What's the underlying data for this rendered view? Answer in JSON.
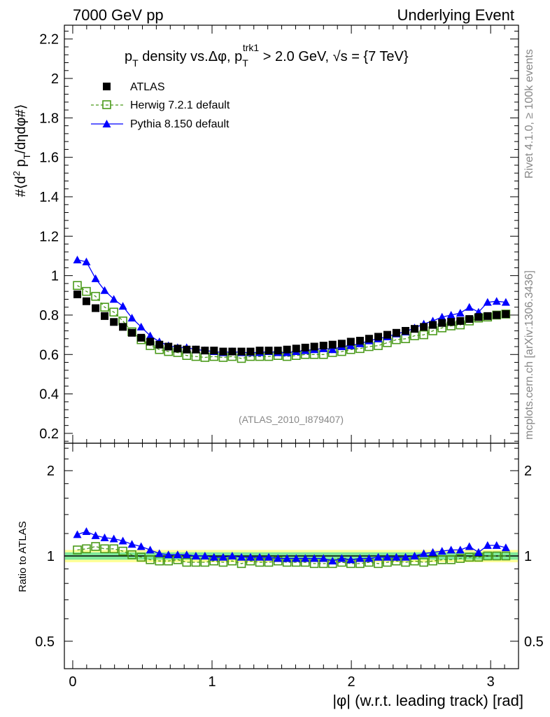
{
  "header": {
    "left": "7000 GeV pp",
    "right": "Underlying Event"
  },
  "side_labels": {
    "rivet": "Rivet 4.1.0, ≥ 100k events",
    "mcplots": "mcplots.cern.ch [arXiv:1306.3436]"
  },
  "analysis_id": "(ATLAS_2010_I879407)",
  "chart_data": [
    {
      "type": "scatter",
      "panel": "main",
      "title": "p_T density vs.Δφ, p_T^trk1 > 2.0 GeV, √s = {7 TeV}",
      "title_parts": {
        "p": "p",
        "t_sub": "T",
        "mid": " density vs.Δφ, p",
        "trk1": "trk1",
        "t_sub2": "T",
        "gt": " > 2.0 GeV, ",
        "sqrt": "√s",
        "energy": " = {7 TeV}"
      },
      "ylabel": "#⟨d² p_T/dηdφ#⟩",
      "ylabel_parts": {
        "a": "#⟨d",
        "sq": "2",
        "b": " p",
        "t": "T",
        "c": "/dηdφ#⟩"
      },
      "xlim": [
        -0.06,
        3.2
      ],
      "ylim": [
        0.15,
        2.27
      ],
      "yticks": [
        0.2,
        0.4,
        0.6,
        0.8,
        1,
        1.2,
        1.4,
        1.6,
        1.8,
        2,
        2.2
      ],
      "ytick_labels": [
        "0.2",
        "0.4",
        "0.6",
        "0.8",
        "1",
        "1.2",
        "1.4",
        "1.6",
        "1.8",
        "2",
        "2.2"
      ],
      "legend_position": "top-left",
      "x": [
        0.033,
        0.098,
        0.164,
        0.229,
        0.295,
        0.36,
        0.425,
        0.491,
        0.556,
        0.622,
        0.687,
        0.753,
        0.818,
        0.884,
        0.949,
        1.014,
        1.08,
        1.145,
        1.211,
        1.276,
        1.342,
        1.407,
        1.473,
        1.538,
        1.604,
        1.669,
        1.734,
        1.8,
        1.865,
        1.931,
        1.996,
        2.062,
        2.127,
        2.193,
        2.258,
        2.323,
        2.389,
        2.454,
        2.52,
        2.585,
        2.651,
        2.716,
        2.782,
        2.847,
        2.913,
        2.978,
        3.043,
        3.109
      ],
      "series": [
        {
          "name": "ATLAS",
          "color": "#000000",
          "marker": "filled-square",
          "values": [
            0.905,
            0.87,
            0.835,
            0.795,
            0.765,
            0.74,
            0.71,
            0.685,
            0.665,
            0.65,
            0.64,
            0.63,
            0.625,
            0.625,
            0.62,
            0.62,
            0.615,
            0.615,
            0.615,
            0.615,
            0.62,
            0.62,
            0.62,
            0.625,
            0.63,
            0.635,
            0.64,
            0.645,
            0.65,
            0.655,
            0.665,
            0.67,
            0.68,
            0.69,
            0.7,
            0.71,
            0.72,
            0.73,
            0.74,
            0.75,
            0.76,
            0.765,
            0.77,
            0.78,
            0.79,
            0.795,
            0.8,
            0.805
          ]
        },
        {
          "name": "Herwig 7.2.1 default",
          "color": "#4a9a1a",
          "marker": "open-square",
          "line": "dashed",
          "values": [
            0.95,
            0.92,
            0.895,
            0.84,
            0.815,
            0.77,
            0.715,
            0.675,
            0.645,
            0.625,
            0.615,
            0.61,
            0.595,
            0.59,
            0.585,
            0.59,
            0.585,
            0.59,
            0.58,
            0.59,
            0.59,
            0.59,
            0.595,
            0.59,
            0.595,
            0.6,
            0.6,
            0.6,
            0.61,
            0.615,
            0.625,
            0.63,
            0.64,
            0.645,
            0.66,
            0.675,
            0.68,
            0.695,
            0.7,
            0.72,
            0.735,
            0.745,
            0.75,
            0.77,
            0.785,
            0.79,
            0.8,
            0.805
          ]
        },
        {
          "name": "Pythia 8.150 default",
          "color": "#0000ff",
          "marker": "filled-triangle",
          "line": "solid",
          "values": [
            1.08,
            1.07,
            0.985,
            0.925,
            0.88,
            0.845,
            0.785,
            0.74,
            0.695,
            0.665,
            0.645,
            0.635,
            0.635,
            0.625,
            0.62,
            0.615,
            0.61,
            0.615,
            0.61,
            0.61,
            0.61,
            0.615,
            0.61,
            0.61,
            0.615,
            0.62,
            0.625,
            0.63,
            0.625,
            0.64,
            0.645,
            0.655,
            0.67,
            0.68,
            0.69,
            0.705,
            0.715,
            0.735,
            0.755,
            0.77,
            0.79,
            0.8,
            0.81,
            0.84,
            0.815,
            0.865,
            0.87,
            0.865
          ]
        }
      ]
    },
    {
      "type": "scatter",
      "panel": "ratio",
      "ylabel": "Ratio to ATLAS",
      "xlabel": "|φ| (w.r.t. leading track) [rad]",
      "xlim": [
        -0.06,
        3.2
      ],
      "ylim": [
        0.4,
        2.5
      ],
      "yscale": "log",
      "yticks": [
        0.5,
        1,
        2
      ],
      "ytick_labels": [
        "0.5",
        "1",
        "2"
      ],
      "xticks": [
        0,
        1,
        2,
        3
      ],
      "xtick_labels": [
        "0",
        "1",
        "2",
        "3"
      ],
      "reference_band": {
        "inner": [
          0.97,
          1.03
        ],
        "outer": [
          0.95,
          1.05
        ],
        "inner_color": "#7fe89a",
        "outer_color": "#ffff99"
      },
      "series": [
        {
          "name": "Herwig 7.2.1 default",
          "color": "#4a9a1a",
          "marker": "open-square",
          "values": [
            1.05,
            1.06,
            1.08,
            1.06,
            1.06,
            1.04,
            1.01,
            0.99,
            0.97,
            0.96,
            0.96,
            0.97,
            0.95,
            0.95,
            0.95,
            0.96,
            0.95,
            0.96,
            0.94,
            0.96,
            0.95,
            0.95,
            0.96,
            0.95,
            0.95,
            0.95,
            0.94,
            0.94,
            0.94,
            0.95,
            0.94,
            0.94,
            0.95,
            0.94,
            0.95,
            0.96,
            0.95,
            0.96,
            0.95,
            0.96,
            0.97,
            0.97,
            0.98,
            0.99,
            0.99,
            1.0,
            1.0,
            1.0
          ]
        },
        {
          "name": "Pythia 8.150 default",
          "color": "#0000ff",
          "marker": "filled-triangle",
          "values": [
            1.19,
            1.22,
            1.18,
            1.16,
            1.15,
            1.13,
            1.1,
            1.08,
            1.05,
            1.02,
            1.01,
            1.01,
            1.01,
            1.0,
            1.0,
            0.99,
            0.99,
            1.0,
            0.99,
            0.99,
            0.99,
            0.99,
            0.98,
            0.98,
            0.98,
            0.98,
            0.98,
            0.98,
            0.96,
            0.98,
            0.97,
            0.98,
            0.98,
            0.99,
            0.99,
            0.99,
            0.99,
            1.0,
            1.02,
            1.03,
            1.04,
            1.05,
            1.05,
            1.08,
            1.03,
            1.09,
            1.09,
            1.07
          ]
        }
      ]
    }
  ]
}
